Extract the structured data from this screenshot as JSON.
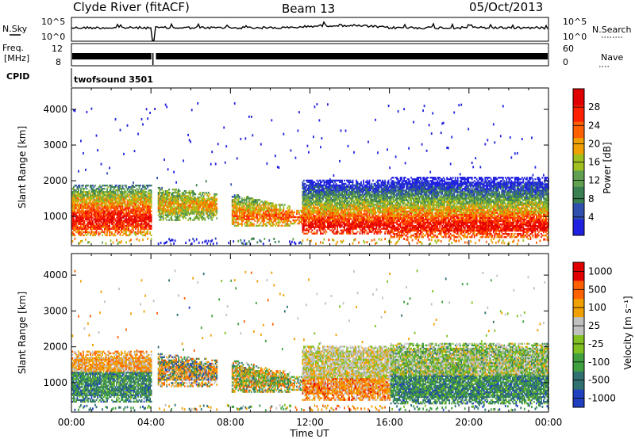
{
  "header": {
    "station": "Clyde River (fitACF)",
    "beam": "Beam 13",
    "date": "05/Oct/2013"
  },
  "strips": {
    "nsky": {
      "label": "N.Sky",
      "ticks": [
        "10^5",
        "10^0"
      ]
    },
    "nsearch": {
      "label": "N.Search",
      "ticks": [
        "10^5",
        "10^0"
      ]
    },
    "freq": {
      "label1": "Freq.",
      "label2": "[MHz]",
      "ticks": [
        "12",
        "8"
      ]
    },
    "nave": {
      "label": "Nave",
      "ticks": [
        "60",
        "0"
      ]
    },
    "cpid": {
      "label": "CPID",
      "value": "twofsound 3501"
    }
  },
  "colors": {
    "power": [
      "#2020e0",
      "#3050b0",
      "#3a8050",
      "#60a050",
      "#a0c020",
      "#f0a000",
      "#ff6000",
      "#ff2000",
      "#e00000"
    ],
    "velocity": [
      "#2040c0",
      "#307070",
      "#40a040",
      "#80c020",
      "#c0c0c0",
      "#f0a000",
      "#ff6000",
      "#e00000"
    ]
  },
  "chart_data": [
    {
      "type": "heatmap",
      "name": "power",
      "ylabel": "Slant Range [km]",
      "xlabel": "Time UT",
      "ylim": [
        180,
        4600
      ],
      "xlim": [
        0,
        24
      ],
      "x_ticks": [
        "00:00",
        "04:00",
        "08:00",
        "12:00",
        "16:00",
        "20:00",
        "00:00"
      ],
      "y_ticks": [
        1000,
        2000,
        3000,
        4000
      ],
      "colorbar": {
        "label": "Power [dB]",
        "ticks": [
          "4",
          "8",
          "12",
          "16",
          "20",
          "24",
          "28"
        ],
        "range": [
          0,
          32
        ]
      }
    },
    {
      "type": "heatmap",
      "name": "velocity",
      "ylabel": "Slant Range [km]",
      "xlabel": "Time UT",
      "ylim": [
        180,
        4600
      ],
      "xlim": [
        0,
        24
      ],
      "x_ticks": [
        "00:00",
        "04:00",
        "08:00",
        "12:00",
        "16:00",
        "20:00",
        "00:00"
      ],
      "y_ticks": [
        1000,
        2000,
        3000,
        4000
      ],
      "colorbar": {
        "label": "Velocity [m s⁻¹]",
        "ticks": [
          "1000",
          "500",
          "100",
          "25",
          "-25",
          "-100",
          "-500",
          "-1000"
        ]
      }
    }
  ],
  "xaxis": {
    "title": "Time UT"
  }
}
